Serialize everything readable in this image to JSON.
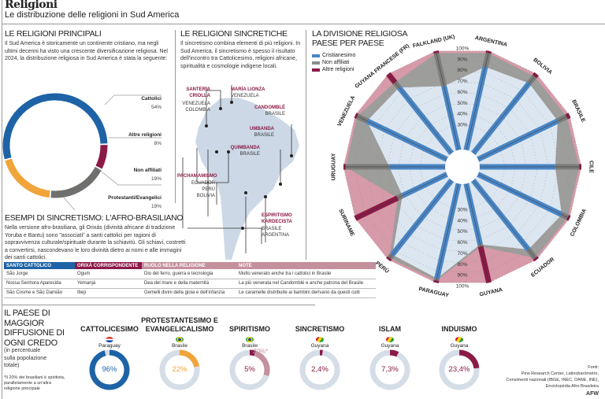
{
  "header": {
    "title": "Religioni",
    "subtitle": "Le distribuzione delle religioni in Sud America"
  },
  "principali": {
    "title": "LE RELIGIONI PRINCIPALI",
    "text": "Il Sud America è storicamente un continente cristiano, ma negli ultimi decenni ha visto una crescente diversificazione religiosa. Nel 2024, la distribuzione religiosa in Sud America è stata la seguente:",
    "slices": [
      {
        "label": "Cattolici",
        "value": 54,
        "text": "54%",
        "color": "#1e63a6"
      },
      {
        "label": "Altre religioni",
        "value": 8,
        "text": "8%",
        "color": "#8b1a46"
      },
      {
        "label": "Non affiliati",
        "value": 19,
        "text": "19%",
        "color": "#6f706e"
      },
      {
        "label": "Protestanti/Evangelici",
        "value": 19,
        "text": "19%",
        "color": "#f0a43a"
      }
    ]
  },
  "sincretiche": {
    "title": "LE RELIGIONI SINCRETICHE",
    "text": "Il sincretismo combina elementi di più religioni. In Sud America, il sincretismo è spesso il risultato dell'incontro tra Cattolicesimo, religioni africane, spiritualità e cosmologie indigene locali.",
    "items": [
      {
        "name": "SANTERIA CRIOLLA",
        "countries": "VENEZUELA COLOMBIA"
      },
      {
        "name": "MARÍA LIONZA",
        "countries": "VENEZUELA"
      },
      {
        "name": "CANDOMBLÉ",
        "countries": "BRASILE"
      },
      {
        "name": "UMBANDA",
        "countries": "BRASILE"
      },
      {
        "name": "QUIMBANDA",
        "countries": "BRASILE"
      },
      {
        "name": "PACHAMAMISMO",
        "countries": "ECUADOR PERÙ BOLIVIA"
      },
      {
        "name": "ESPIRITISMO KARDECISTA",
        "countries": "BRASILE ARGENTINA"
      }
    ]
  },
  "esempi": {
    "title": "ESEMPI DI SINCRETISMO: L'AFRO-BRASILIANO",
    "text": "Nella versione afro-brasiliana, gli Orixás (divinità africane di tradizione Yoruba e Bantu) sono \"associati\" a santi cattolici per ragioni di sopravvivenza culturale/spirituale durante la schiavitù. Gli schiavi, costretti a convertirsi, nascondevano le loro divinità dietro ai nomi e alle immagini dei santi cattolici.",
    "headers": [
      "SANTO CATTOLICO",
      "ORIXÁ CORRISPONDENTE",
      "RUOLO NELLA RELIGIONE",
      "NOTE"
    ],
    "rows": [
      [
        "São Jorge",
        "Ogum",
        "Dio del ferro, guerra e tecnologia",
        "Molto venerato anche tra i cattolici in Brasile"
      ],
      [
        "Nossa Senhora Aparecida",
        "Yemanjá",
        "Dea del mare e della maternità",
        "La più venerata nel Candomblé e anche patrona del Brasile"
      ],
      [
        "São Cosme e São Damião",
        "Ibeji",
        "Gemelli divini della gioia e dell'infanzia",
        "Le caramelle distribuite ai bambini derivano da questi culti"
      ]
    ]
  },
  "chart_data": {
    "type": "radar",
    "title": "LA DIVISIONE RELIGIOSA PAESE PER PAESE",
    "legend": [
      "Cristianesimo",
      "Non affiliati",
      "Altre religioni"
    ],
    "ticks": [
      "30%",
      "40%",
      "50%",
      "60%",
      "70%",
      "80%",
      "90%",
      "100%"
    ],
    "countries": [
      "ARGENTINA",
      "BOLIVIA",
      "BRASILE",
      "CILE",
      "COLOMBIA",
      "ECUADOR",
      "GUYANA",
      "PARAGUAY",
      "PERÙ",
      "SURINAME",
      "URUGUAY",
      "VENEZUELA",
      "GUYANA FRANCESE (FR)",
      "FALKLAND (UK)"
    ],
    "series": [
      {
        "name": "Cristianesimo",
        "values": [
          85,
          89,
          88,
          76,
          92,
          88,
          64,
          96,
          94,
          52,
          58,
          88,
          84,
          67
        ]
      },
      {
        "name": "Non affiliati",
        "values": [
          13,
          8,
          9,
          22,
          6,
          10,
          2,
          2,
          4,
          5,
          40,
          10,
          6,
          31
        ]
      },
      {
        "name": "Altre religioni",
        "values": [
          2,
          3,
          3,
          2,
          2,
          2,
          34,
          2,
          2,
          43,
          2,
          2,
          10,
          2
        ]
      }
    ],
    "range": [
      0,
      100
    ]
  },
  "maggior": {
    "title": "IL PAESE DI MAGGIOR DIFFUSIONE DI OGNI CREDO",
    "subtitle": "(in percentuale sulla popolazione totale)",
    "note": "*Il 20% dei brasiliani è spiritista, parallelamente a un'altra religione principale",
    "items": [
      {
        "title": "CATTOLICESIMO",
        "country": "Paraguay",
        "value": 96,
        "text": "96%",
        "color": "#1e63a6"
      },
      {
        "title": "PROTESTANTESIMO E EVANGELICALISMO",
        "country": "Brasile",
        "value": 22,
        "text": "22%",
        "color": "#f0a43a"
      },
      {
        "title": "SPIRITISMO",
        "country": "Brasile",
        "value": 5,
        "text": "5%",
        "color": "#8b1a46",
        "extra": 20,
        "extra_text": "20%*"
      },
      {
        "title": "SINCRETISMO",
        "country": "Guyana",
        "value": 2.4,
        "text": "2,4%",
        "color": "#8b1a46"
      },
      {
        "title": "ISLAM",
        "country": "Guyana",
        "value": 7.3,
        "text": "7,3%",
        "color": "#8b1a46"
      },
      {
        "title": "INDUISMO",
        "country": "Guyana",
        "value": 23.4,
        "text": "23,4%",
        "color": "#8b1a46"
      }
    ]
  },
  "sources": {
    "lines": [
      "Fonti:",
      "Pew Research Center, Latinobarómetro,",
      "Censimenti nazionali (IBGE, INEC, DANE, INE),",
      "Enciclopédia Afro-Brasileira"
    ],
    "brand": "AFW"
  }
}
